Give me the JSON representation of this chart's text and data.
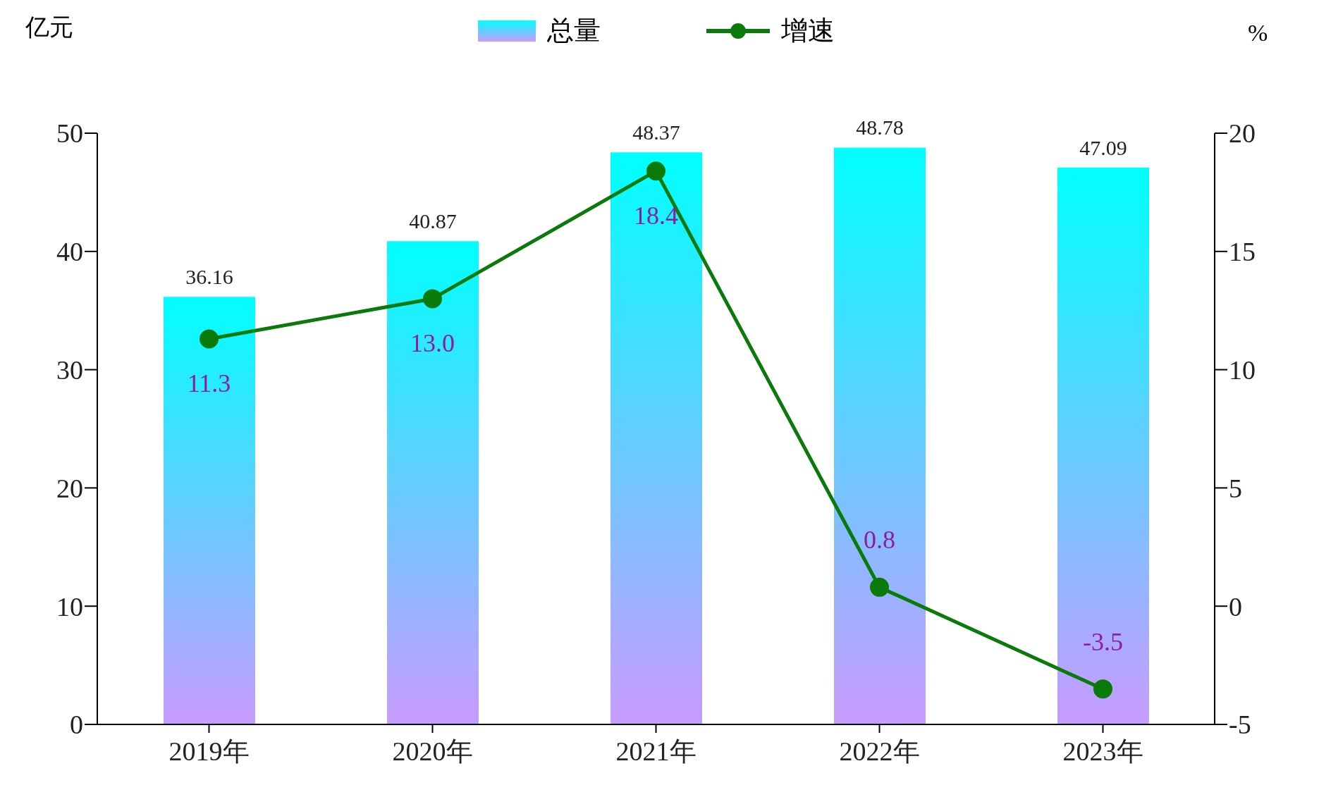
{
  "chart_data": {
    "type": "bar",
    "categories": [
      "2019年",
      "2020年",
      "2021年",
      "2022年",
      "2023年"
    ],
    "series": [
      {
        "name": "总量",
        "color": "#00ffff",
        "values": [
          36.16,
          40.87,
          48.37,
          48.78,
          47.09
        ],
        "value_labels": [
          "36.16",
          "40.87",
          "48.37",
          "48.78",
          "47.09"
        ]
      },
      {
        "name": "增速",
        "type": "line",
        "axis": "y2",
        "color": "#0a7a0a",
        "values": [
          11.3,
          13.0,
          18.4,
          0.8,
          -3.5
        ],
        "value_labels": [
          "11.3",
          "13.0",
          "18.4",
          "0.8",
          "-3.5"
        ]
      }
    ],
    "ylabel": "亿元",
    "y2label": "%",
    "ylim": [
      0,
      50
    ],
    "yticks": [
      0,
      10,
      20,
      30,
      40,
      50
    ],
    "y2lim": [
      -5,
      20
    ],
    "y2ticks": [
      -5,
      0,
      5,
      10,
      15,
      20
    ],
    "legend": "top",
    "marker": "circle",
    "line_style": "solid"
  }
}
